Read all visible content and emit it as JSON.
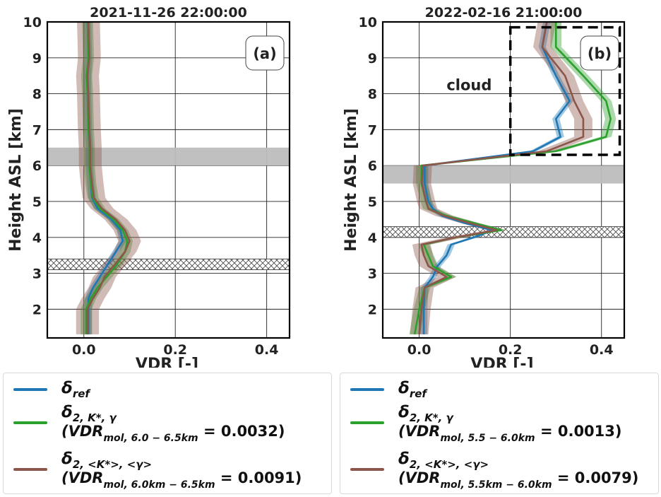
{
  "colors": {
    "ref": "#1f77b4",
    "k": "#2ca02c",
    "avg": "#8c564b",
    "gray_band": "#bdbdbd",
    "hatch": "#444444"
  },
  "legend_items": [
    {
      "symbol": "δ",
      "subscript": "ref",
      "expr_prefix": "",
      "expr_sub": "",
      "expr_value": ""
    },
    {
      "symbol": "δ",
      "subscript": "2, K*, γ",
      "expr_prefix": "(VDR",
      "expr_sub": "mol, 6.0 − 6.5km",
      "expr_value": " = 0.0032)"
    },
    {
      "symbol": "δ",
      "subscript": "2, <K*>, <γ>",
      "expr_prefix": "(VDR",
      "expr_sub": "mol, 6.0km − 6.5km",
      "expr_value": " = 0.0091)"
    }
  ],
  "chart_data": [
    {
      "type": "line",
      "title": "2021-11-26 22:00:00",
      "panel_label": "(a)",
      "xlabel": "VDR [-]",
      "ylabel": "Height ASL [km]",
      "xlim": [
        -0.08,
        0.45
      ],
      "ylim": [
        1.2,
        10
      ],
      "xticks": [
        0.0,
        0.2,
        0.4
      ],
      "xtick_labels": [
        "0.0",
        "0.2",
        "0.4"
      ],
      "yticks": [
        2,
        3,
        4,
        5,
        6,
        7,
        8,
        9,
        10
      ],
      "grid": true,
      "reference_band_km": [
        6.0,
        6.5
      ],
      "hatched_band_km": [
        3.1,
        3.4
      ],
      "annotation": "",
      "series": [
        {
          "key": "ref",
          "x": [
            0.01,
            0.01,
            0.01,
            0.02,
            0.035,
            0.05,
            0.07,
            0.085,
            0.08,
            0.06,
            0.03,
            0.018,
            0.015,
            0.012,
            0.012,
            0.01,
            0.008,
            0.008,
            0.01,
            0.008
          ],
          "y": [
            1.3,
            2.0,
            2.3,
            2.6,
            2.9,
            3.2,
            3.6,
            3.9,
            4.2,
            4.5,
            4.8,
            5.1,
            5.5,
            6.0,
            6.5,
            7.0,
            8.0,
            8.5,
            9.0,
            10.0
          ],
          "band": 0.008
        },
        {
          "key": "k",
          "x": [
            0.005,
            0.005,
            0.015,
            0.03,
            0.05,
            0.07,
            0.09,
            0.095,
            0.085,
            0.065,
            0.035,
            0.02,
            0.015,
            0.012,
            0.012,
            0.01,
            0.008,
            0.006,
            0.01,
            0.008
          ],
          "y": [
            1.3,
            2.0,
            2.3,
            2.6,
            2.9,
            3.2,
            3.6,
            3.9,
            4.2,
            4.5,
            4.8,
            5.1,
            5.5,
            6.0,
            6.5,
            7.0,
            8.0,
            8.5,
            9.0,
            10.0
          ],
          "band": 0.012
        },
        {
          "key": "avg",
          "x": [
            0.008,
            0.008,
            0.02,
            0.035,
            0.045,
            0.065,
            0.09,
            0.1,
            0.09,
            0.07,
            0.04,
            0.022,
            0.018,
            0.014,
            0.014,
            0.012,
            0.01,
            0.008,
            0.012,
            0.01
          ],
          "y": [
            1.3,
            2.0,
            2.3,
            2.6,
            2.9,
            3.2,
            3.6,
            3.9,
            4.2,
            4.5,
            4.8,
            5.1,
            5.5,
            6.0,
            6.5,
            7.0,
            8.0,
            8.5,
            9.0,
            10.0
          ],
          "band": 0.025
        }
      ]
    },
    {
      "type": "line",
      "title": "2022-02-16 21:00:00",
      "panel_label": "(b)",
      "xlabel": "VDR [-]",
      "ylabel": "Height ASL [km]",
      "xlim": [
        -0.08,
        0.45
      ],
      "ylim": [
        1.2,
        10
      ],
      "xticks": [
        0.0,
        0.2,
        0.4
      ],
      "xtick_labels": [
        "0.0",
        "0.2",
        "0.4"
      ],
      "yticks": [
        2,
        3,
        4,
        5,
        6,
        7,
        8,
        9,
        10
      ],
      "grid": true,
      "reference_band_km": [
        5.5,
        6.0
      ],
      "hatched_band_km": [
        4.0,
        4.3
      ],
      "annotation": "cloud",
      "cloud_box": {
        "x": [
          0.2,
          0.44
        ],
        "y": [
          6.3,
          9.85
        ]
      },
      "series": [
        {
          "key": "ref",
          "x": [
            0.01,
            0.01,
            0.012,
            0.03,
            0.04,
            0.06,
            0.07,
            0.12,
            0.16,
            0.1,
            0.05,
            0.03,
            0.02,
            0.012,
            0.012,
            0.25,
            0.31,
            0.3,
            0.33,
            0.3,
            0.27,
            0.28
          ],
          "y": [
            1.3,
            2.0,
            2.6,
            2.9,
            3.2,
            3.5,
            3.8,
            4.0,
            4.2,
            4.4,
            4.6,
            4.8,
            5.0,
            5.5,
            6.0,
            6.4,
            6.8,
            7.3,
            7.8,
            8.5,
            9.3,
            10.0
          ],
          "band": 0.008
        },
        {
          "key": "k",
          "x": [
            -0.01,
            0.0,
            0.012,
            0.07,
            0.03,
            0.02,
            0.01,
            0.08,
            0.18,
            0.12,
            0.06,
            0.02,
            0.015,
            0.005,
            0.005,
            0.3,
            0.41,
            0.42,
            0.41,
            0.36,
            0.3,
            0.3
          ],
          "y": [
            1.3,
            2.0,
            2.6,
            2.9,
            3.2,
            3.5,
            3.8,
            4.0,
            4.2,
            4.4,
            4.6,
            4.8,
            5.0,
            5.5,
            6.0,
            6.4,
            6.8,
            7.3,
            7.8,
            8.5,
            9.3,
            10.0
          ],
          "band": 0.012
        },
        {
          "key": "avg",
          "x": [
            0.0,
            0.005,
            0.012,
            0.06,
            0.02,
            0.01,
            0.005,
            0.08,
            0.17,
            0.11,
            0.055,
            0.02,
            0.015,
            0.006,
            0.008,
            0.28,
            0.36,
            0.36,
            0.34,
            0.32,
            0.27,
            0.28
          ],
          "y": [
            1.3,
            2.0,
            2.6,
            2.9,
            3.2,
            3.5,
            3.8,
            4.0,
            4.2,
            4.4,
            4.6,
            4.8,
            5.0,
            5.5,
            6.0,
            6.4,
            6.8,
            7.3,
            7.8,
            8.5,
            9.3,
            10.0
          ],
          "band": 0.02
        }
      ]
    }
  ],
  "legend_right": [
    {
      "symbol": "δ",
      "subscript": "ref",
      "expr_prefix": "",
      "expr_sub": "",
      "expr_value": ""
    },
    {
      "symbol": "δ",
      "subscript": "2, K*, γ",
      "expr_prefix": "(VDR",
      "expr_sub": "mol, 5.5 − 6.0km",
      "expr_value": " = 0.0013)"
    },
    {
      "symbol": "δ",
      "subscript": "2, <K*>, <γ>",
      "expr_prefix": "(VDR",
      "expr_sub": "mol, 5.5km − 6.0km",
      "expr_value": " = 0.0079)"
    }
  ]
}
